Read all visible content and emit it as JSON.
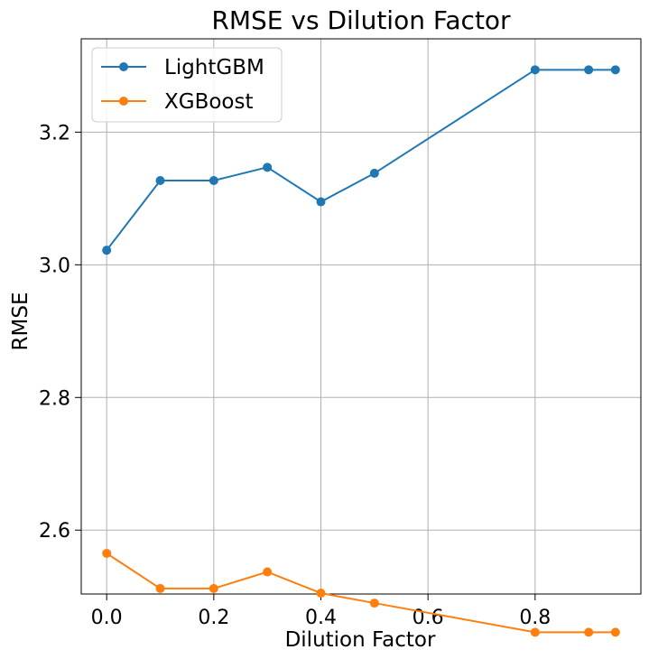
{
  "chart_data": {
    "type": "line",
    "title": "RMSE vs Dilution Factor",
    "xlabel": "Dilution Factor",
    "ylabel": "RMSE",
    "x": [
      0.0,
      0.1,
      0.2,
      0.3,
      0.4,
      0.5,
      0.8,
      0.9,
      0.95
    ],
    "xlim": [
      -0.0475,
      0.9975
    ],
    "ylim": [
      2.5037,
      3.3407
    ],
    "xticks": [
      0.0,
      0.2,
      0.4,
      0.6,
      0.8
    ],
    "xtick_labels": [
      "0.0",
      "0.2",
      "0.4",
      "0.6",
      "0.8"
    ],
    "yticks": [
      2.6,
      2.8,
      3.0,
      3.2
    ],
    "ytick_labels": [
      "2.6",
      "2.8",
      "3.0",
      "3.2"
    ],
    "grid": true,
    "legend_position": "top-left",
    "series": [
      {
        "name": "LightGBM",
        "color": "#1f77b4",
        "marker": "circle",
        "values": [
          3.022,
          3.127,
          3.127,
          3.147,
          3.095,
          3.138,
          3.294,
          3.294,
          3.294
        ]
      },
      {
        "name": "XGBoost",
        "color": "#ff7f0e",
        "marker": "circle",
        "values": [
          2.565,
          2.512,
          2.512,
          2.537,
          2.505,
          2.49,
          2.446,
          2.446,
          2.446
        ]
      }
    ]
  }
}
